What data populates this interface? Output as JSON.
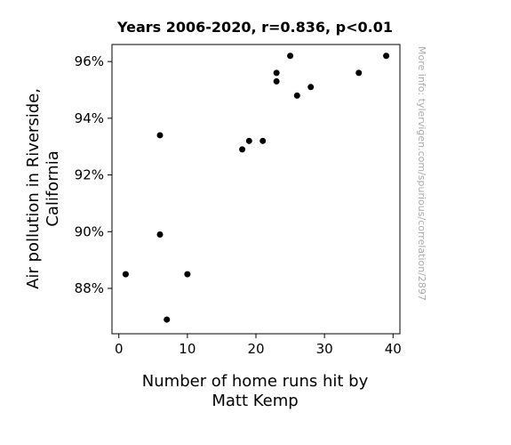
{
  "chart_data": {
    "type": "scatter",
    "title": "Years 2006-2020, r=0.836, p<0.01",
    "xlabel_lines": [
      "Number of home runs hit by",
      "Matt Kemp"
    ],
    "ylabel_lines": [
      "Air pollution in Riverside,",
      "California"
    ],
    "xlim": [
      -1,
      41
    ],
    "ylim": [
      86.4,
      96.6
    ],
    "x_ticks": [
      0,
      10,
      20,
      30,
      40
    ],
    "x_tick_labels": [
      "0",
      "10",
      "20",
      "30",
      "40"
    ],
    "y_ticks": [
      88,
      90,
      92,
      94,
      96
    ],
    "y_tick_labels": [
      "88%",
      "90%",
      "92%",
      "94%",
      "96%"
    ],
    "grid": false,
    "marker_color": "#000000",
    "points": [
      {
        "x": 1,
        "y": 88.5
      },
      {
        "x": 6,
        "y": 93.4
      },
      {
        "x": 6,
        "y": 89.9
      },
      {
        "x": 7,
        "y": 86.9
      },
      {
        "x": 10,
        "y": 88.5
      },
      {
        "x": 18,
        "y": 92.9
      },
      {
        "x": 19,
        "y": 93.2
      },
      {
        "x": 21,
        "y": 93.2
      },
      {
        "x": 23,
        "y": 95.6
      },
      {
        "x": 23,
        "y": 95.3
      },
      {
        "x": 25,
        "y": 96.2
      },
      {
        "x": 26,
        "y": 94.8
      },
      {
        "x": 28,
        "y": 95.1
      },
      {
        "x": 35,
        "y": 95.6
      },
      {
        "x": 39,
        "y": 96.2
      }
    ]
  },
  "watermark": "More info: tylervigen.com/spurious/correlation/2897"
}
